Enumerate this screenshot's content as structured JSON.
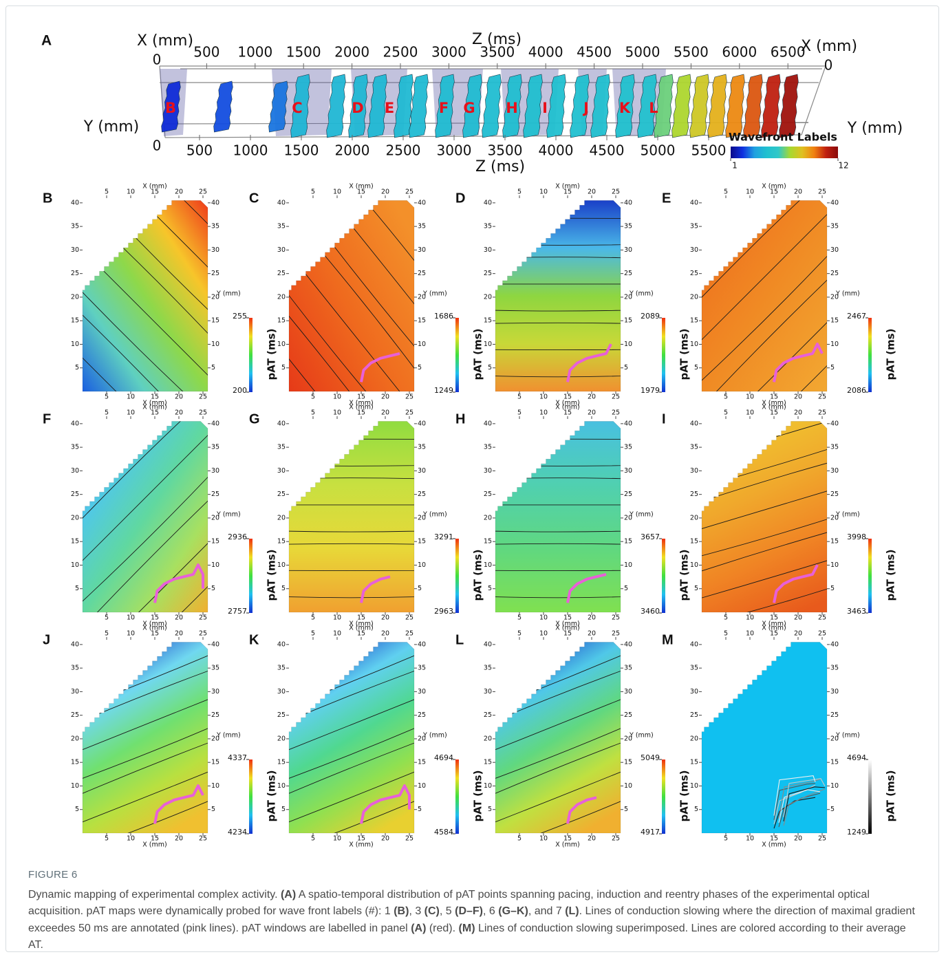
{
  "figure": {
    "panel_a": {
      "letter": "A",
      "top_x_label": "X (mm)",
      "top_z_label": "Z (ms)",
      "right_x_label": "X (mm)",
      "left_y_label": "Y (mm)",
      "right_y_label": "Y (mm)",
      "bottom_z_label": "Z (ms)",
      "top_origin": 0,
      "right_x_origin": 0,
      "left_y_origin": 0,
      "top_ticks": [
        500,
        1000,
        1500,
        2000,
        2500,
        3000,
        3500,
        4000,
        4500,
        5000,
        5500,
        6000,
        6500
      ],
      "bottom_ticks": [
        500,
        1000,
        1500,
        2000,
        2500,
        3000,
        3500,
        4000,
        4500,
        5000,
        5500
      ],
      "window_labels": [
        "B",
        "C",
        "D",
        "E",
        "F",
        "G",
        "H",
        "I",
        "J",
        "K",
        "L"
      ],
      "legend": {
        "title": "Wavefront Labels",
        "min": 1,
        "max": 12
      }
    },
    "map_axes": {
      "x_label": "X (mm)",
      "y_label": "Y (mm)",
      "colorbar_label": "pAT (ms)",
      "x_lim": [
        0,
        26
      ],
      "y_lim": [
        0,
        41
      ],
      "x_ticks": [
        5,
        10,
        15,
        20,
        25
      ],
      "y_ticks": [
        5,
        10,
        15,
        20,
        25,
        30,
        35,
        40
      ]
    },
    "panels": [
      {
        "letter": "B",
        "cbar_max": 255,
        "cbar_min": 200,
        "colormap": "jet",
        "colors": [
          "#1a5fe0",
          "#5fd0c0",
          "#8ed84a",
          "#f7c52a",
          "#ef3a1a"
        ]
      },
      {
        "letter": "C",
        "cbar_max": 1686,
        "cbar_min": 1249,
        "colormap": "jet",
        "colors": [
          "#e63a18",
          "#ef6a1e",
          "#f3902a"
        ]
      },
      {
        "letter": "D",
        "cbar_max": 2089,
        "cbar_min": 1979,
        "colormap": "jet",
        "colors": [
          "#1a40c8",
          "#4ab8e8",
          "#8ed640",
          "#c8d838",
          "#f09030"
        ]
      },
      {
        "letter": "E",
        "cbar_max": 2467,
        "cbar_min": 2086,
        "colormap": "jet",
        "colors": [
          "#ee6a1c",
          "#f08a24",
          "#f2a832"
        ]
      },
      {
        "letter": "F",
        "cbar_max": 2936,
        "cbar_min": 2757,
        "colormap": "jet",
        "colors": [
          "#2050d0",
          "#50c8e8",
          "#60d8a0",
          "#a8e060",
          "#f0b030"
        ]
      },
      {
        "letter": "G",
        "cbar_max": 3291,
        "cbar_min": 2963,
        "colormap": "jet",
        "colors": [
          "#90dc40",
          "#c8e040",
          "#e8d838",
          "#f0a030"
        ]
      },
      {
        "letter": "H",
        "cbar_max": 3657,
        "cbar_min": 3460,
        "colormap": "jet",
        "colors": [
          "#48c0e0",
          "#50d0b0",
          "#60d880",
          "#80e050"
        ]
      },
      {
        "letter": "I",
        "cbar_max": 3998,
        "cbar_min": 3463,
        "colormap": "jet",
        "colors": [
          "#f0c430",
          "#f0a82c",
          "#f08424",
          "#e85a1c"
        ]
      },
      {
        "letter": "J",
        "cbar_max": 4337,
        "cbar_min": 4234,
        "colormap": "jet",
        "colors": [
          "#1a40c8",
          "#70d8f0",
          "#70e070",
          "#b8e040",
          "#f0c030"
        ]
      },
      {
        "letter": "K",
        "cbar_max": 4694,
        "cbar_min": 4584,
        "colormap": "jet",
        "colors": [
          "#1a40c8",
          "#60d0f0",
          "#50d890",
          "#90e050",
          "#e8d030"
        ]
      },
      {
        "letter": "L",
        "cbar_max": 5049,
        "cbar_min": 4917,
        "colormap": "jet",
        "colors": [
          "#1a40c8",
          "#50c8e8",
          "#60d880",
          "#c0e040",
          "#f0b030"
        ]
      },
      {
        "letter": "M",
        "cbar_max": 4694,
        "cbar_min": 1249,
        "colormap": "gray",
        "colors": [
          "#10c0f0",
          "#10c0f0"
        ]
      }
    ],
    "caption": {
      "heading": "FIGURE 6",
      "runs": [
        {
          "text": "Dynamic mapping of experimental complex activity. ",
          "bold": false
        },
        {
          "text": "(A)",
          "bold": true
        },
        {
          "text": " A spatio-temporal distribution of pAT points spanning pacing, induction and reentry phases of the experimental optical acquisition. pAT maps were dynamically probed for wave front labels (#): 1 ",
          "bold": false
        },
        {
          "text": "(B)",
          "bold": true
        },
        {
          "text": ", 3 ",
          "bold": false
        },
        {
          "text": "(C)",
          "bold": true
        },
        {
          "text": ", 5 ",
          "bold": false
        },
        {
          "text": "(D–F)",
          "bold": true
        },
        {
          "text": ", 6 ",
          "bold": false
        },
        {
          "text": "(G–K)",
          "bold": true
        },
        {
          "text": ", and 7 ",
          "bold": false
        },
        {
          "text": "(L)",
          "bold": true
        },
        {
          "text": ". Lines of conduction slowing where the direction of maximal gradient exceedes 50 ms are annotated (pink lines). pAT windows are labelled in panel ",
          "bold": false
        },
        {
          "text": "(A)",
          "bold": true
        },
        {
          "text": " (red). ",
          "bold": false
        },
        {
          "text": "(M)",
          "bold": true
        },
        {
          "text": " Lines of conduction slowing superimposed. Lines are colored according to their average AT.",
          "bold": false
        }
      ]
    }
  }
}
